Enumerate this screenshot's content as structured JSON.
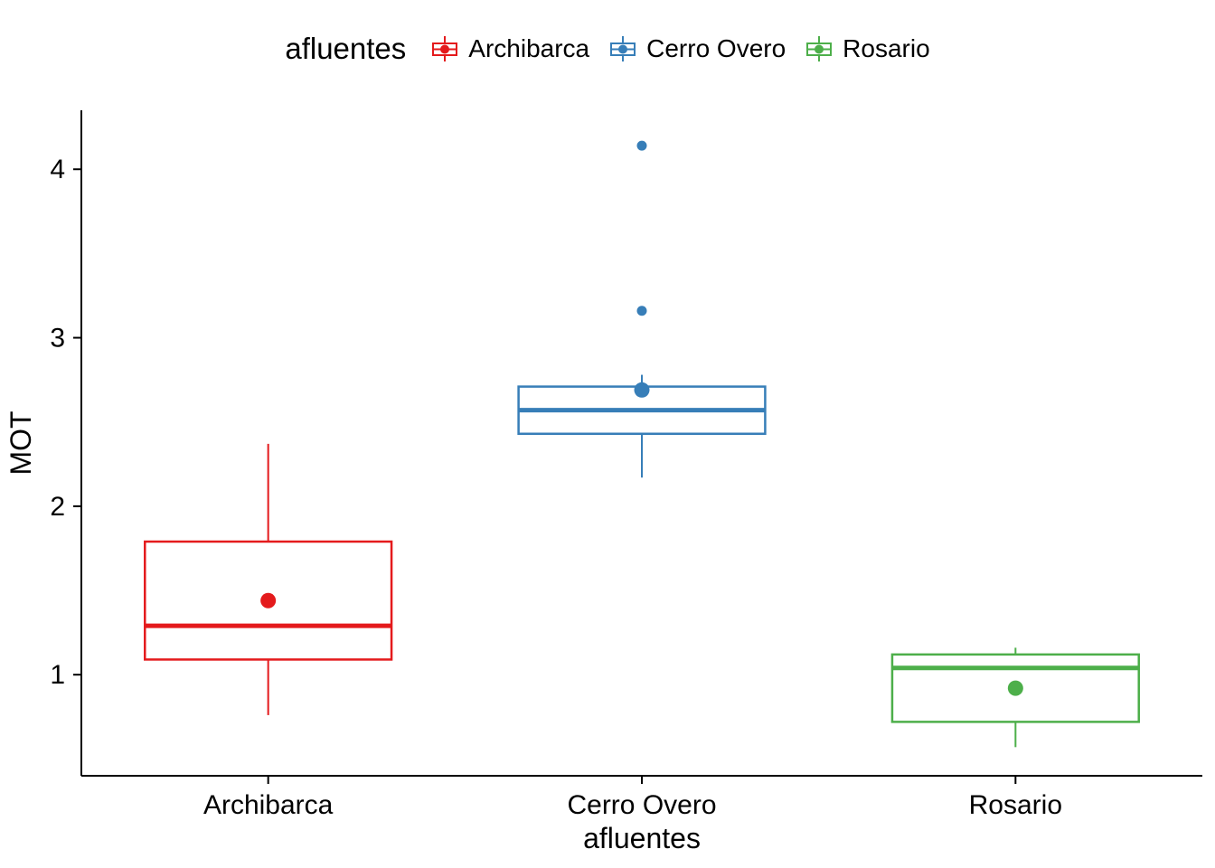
{
  "chart_data": {
    "type": "boxplot",
    "title": "",
    "xlabel": "afluentes",
    "ylabel": "MOT",
    "ylim": [
      0.4,
      4.35
    ],
    "yticks": [
      1,
      2,
      3,
      4
    ],
    "categories": [
      "Archibarca",
      "Cerro Overo",
      "Rosario"
    ],
    "grid": false,
    "legend": {
      "title": "afluentes",
      "position": "top",
      "entries": [
        {
          "label": "Archibarca",
          "color": "#E41A1C"
        },
        {
          "label": "Cerro Overo",
          "color": "#377EB8"
        },
        {
          "label": "Rosario",
          "color": "#4DAF4A"
        }
      ]
    },
    "series": [
      {
        "name": "Archibarca",
        "color": "#E41A1C",
        "whisker_low": 0.76,
        "q1": 1.09,
        "median": 1.29,
        "q3": 1.79,
        "whisker_high": 2.37,
        "mean": 1.44,
        "outliers": []
      },
      {
        "name": "Cerro Overo",
        "color": "#377EB8",
        "whisker_low": 2.17,
        "q1": 2.43,
        "median": 2.57,
        "q3": 2.71,
        "whisker_high": 2.78,
        "mean": 2.69,
        "outliers": [
          3.16,
          4.14
        ]
      },
      {
        "name": "Rosario",
        "color": "#4DAF4A",
        "whisker_low": 0.57,
        "q1": 0.72,
        "median": 1.04,
        "q3": 1.12,
        "whisker_high": 1.16,
        "mean": 0.92,
        "outliers": []
      }
    ]
  }
}
